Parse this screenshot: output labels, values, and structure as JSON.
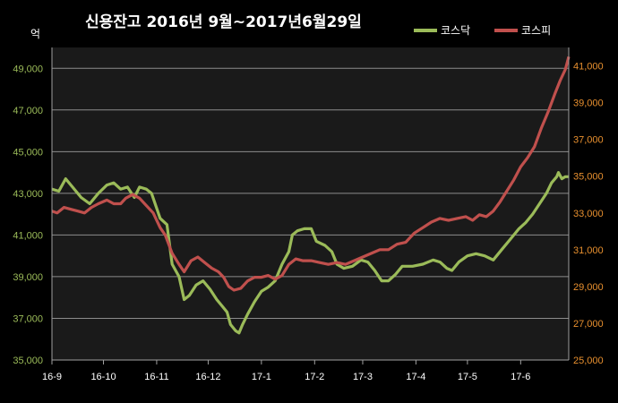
{
  "chart_data": {
    "type": "line",
    "title": "신용잔고  2016년 9월~2017년6월29일",
    "left_unit": "억",
    "x_tick_labels": [
      "16-9",
      "16-10",
      "16-11",
      "16-12",
      "17-1",
      "17-2",
      "17-3",
      "17-4",
      "17-5",
      "17-6"
    ],
    "x_range": [
      "2016-09-01",
      "2017-06-29"
    ],
    "left_axis": {
      "min": 35000,
      "max": 50000,
      "ticks": [
        "35,000",
        "37,000",
        "39,000",
        "41,000",
        "43,000",
        "45,000",
        "47,000",
        "49,000"
      ]
    },
    "right_axis": {
      "min": 25000,
      "max": 42000,
      "ticks": [
        "25,000",
        "27,000",
        "29,000",
        "31,000",
        "33,000",
        "35,000",
        "37,000",
        "39,000",
        "41,000"
      ]
    },
    "grid": true,
    "legend_position": "top-right",
    "series": [
      {
        "name": "코스닥",
        "axis": "left",
        "color": "#9bbb59",
        "points": [
          [
            "2016-09-01",
            43200
          ],
          [
            "2016-09-05",
            43100
          ],
          [
            "2016-09-09",
            43700
          ],
          [
            "2016-09-13",
            43300
          ],
          [
            "2016-09-18",
            42800
          ],
          [
            "2016-09-23",
            42500
          ],
          [
            "2016-09-28",
            43000
          ],
          [
            "2016-10-03",
            43400
          ],
          [
            "2016-10-07",
            43500
          ],
          [
            "2016-10-11",
            43200
          ],
          [
            "2016-10-15",
            43300
          ],
          [
            "2016-10-19",
            42800
          ],
          [
            "2016-10-22",
            43300
          ],
          [
            "2016-10-26",
            43200
          ],
          [
            "2016-10-29",
            43000
          ],
          [
            "2016-11-03",
            41800
          ],
          [
            "2016-11-07",
            41500
          ],
          [
            "2016-11-10",
            39600
          ],
          [
            "2016-11-14",
            39000
          ],
          [
            "2016-11-17",
            37900
          ],
          [
            "2016-11-20",
            38100
          ],
          [
            "2016-11-24",
            38600
          ],
          [
            "2016-11-28",
            38800
          ],
          [
            "2016-12-02",
            38400
          ],
          [
            "2016-12-06",
            37900
          ],
          [
            "2016-12-09",
            37600
          ],
          [
            "2016-12-12",
            37300
          ],
          [
            "2016-12-14",
            36700
          ],
          [
            "2016-12-17",
            36400
          ],
          [
            "2016-12-19",
            36300
          ],
          [
            "2016-12-21",
            36700
          ],
          [
            "2016-12-24",
            37200
          ],
          [
            "2016-12-28",
            37800
          ],
          [
            "2017-01-01",
            38300
          ],
          [
            "2017-01-05",
            38500
          ],
          [
            "2017-01-09",
            38800
          ],
          [
            "2017-01-13",
            39600
          ],
          [
            "2017-01-17",
            40200
          ],
          [
            "2017-01-19",
            41000
          ],
          [
            "2017-01-22",
            41200
          ],
          [
            "2017-01-26",
            41300
          ],
          [
            "2017-01-30",
            41300
          ],
          [
            "2017-02-02",
            40700
          ],
          [
            "2017-02-07",
            40500
          ],
          [
            "2017-02-11",
            40200
          ],
          [
            "2017-02-14",
            39600
          ],
          [
            "2017-02-18",
            39400
          ],
          [
            "2017-02-23",
            39500
          ],
          [
            "2017-02-28",
            39800
          ],
          [
            "2017-03-04",
            39700
          ],
          [
            "2017-03-08",
            39300
          ],
          [
            "2017-03-12",
            38800
          ],
          [
            "2017-03-16",
            38800
          ],
          [
            "2017-03-20",
            39100
          ],
          [
            "2017-03-24",
            39500
          ],
          [
            "2017-03-30",
            39500
          ],
          [
            "2017-04-05",
            39600
          ],
          [
            "2017-04-11",
            39800
          ],
          [
            "2017-04-15",
            39700
          ],
          [
            "2017-04-19",
            39400
          ],
          [
            "2017-04-22",
            39300
          ],
          [
            "2017-04-26",
            39700
          ],
          [
            "2017-05-01",
            40000
          ],
          [
            "2017-05-06",
            40100
          ],
          [
            "2017-05-11",
            40000
          ],
          [
            "2017-05-16",
            39800
          ],
          [
            "2017-05-21",
            40300
          ],
          [
            "2017-05-26",
            40800
          ],
          [
            "2017-05-31",
            41300
          ],
          [
            "2017-06-04",
            41600
          ],
          [
            "2017-06-08",
            42000
          ],
          [
            "2017-06-12",
            42500
          ],
          [
            "2017-06-16",
            43000
          ],
          [
            "2017-06-19",
            43500
          ],
          [
            "2017-06-22",
            43800
          ],
          [
            "2017-06-23",
            44000
          ],
          [
            "2017-06-25",
            43700
          ],
          [
            "2017-06-27",
            43800
          ],
          [
            "2017-06-29",
            43800
          ]
        ]
      },
      {
        "name": "코스피",
        "axis": "right",
        "color": "#c0504d",
        "points": [
          [
            "2016-09-01",
            33100
          ],
          [
            "2016-09-04",
            33000
          ],
          [
            "2016-09-08",
            33300
          ],
          [
            "2016-09-12",
            33200
          ],
          [
            "2016-09-16",
            33100
          ],
          [
            "2016-09-20",
            33000
          ],
          [
            "2016-09-24",
            33300
          ],
          [
            "2016-09-28",
            33500
          ],
          [
            "2016-10-03",
            33700
          ],
          [
            "2016-10-07",
            33500
          ],
          [
            "2016-10-11",
            33500
          ],
          [
            "2016-10-14",
            33800
          ],
          [
            "2016-10-18",
            34000
          ],
          [
            "2016-10-22",
            33800
          ],
          [
            "2016-10-26",
            33400
          ],
          [
            "2016-10-30",
            33000
          ],
          [
            "2016-11-03",
            32200
          ],
          [
            "2016-11-06",
            31800
          ],
          [
            "2016-11-10",
            30800
          ],
          [
            "2016-11-14",
            30200
          ],
          [
            "2016-11-17",
            29800
          ],
          [
            "2016-11-21",
            30400
          ],
          [
            "2016-11-25",
            30600
          ],
          [
            "2016-11-29",
            30300
          ],
          [
            "2016-12-03",
            30000
          ],
          [
            "2016-12-07",
            29800
          ],
          [
            "2016-12-10",
            29500
          ],
          [
            "2016-12-13",
            29000
          ],
          [
            "2016-12-16",
            28800
          ],
          [
            "2016-12-20",
            28900
          ],
          [
            "2016-12-24",
            29300
          ],
          [
            "2016-12-28",
            29500
          ],
          [
            "2017-01-01",
            29500
          ],
          [
            "2017-01-05",
            29600
          ],
          [
            "2017-01-09",
            29400
          ],
          [
            "2017-01-13",
            29600
          ],
          [
            "2017-01-17",
            30200
          ],
          [
            "2017-01-21",
            30500
          ],
          [
            "2017-01-25",
            30400
          ],
          [
            "2017-01-30",
            30400
          ],
          [
            "2017-02-04",
            30300
          ],
          [
            "2017-02-09",
            30200
          ],
          [
            "2017-02-14",
            30300
          ],
          [
            "2017-02-19",
            30200
          ],
          [
            "2017-02-24",
            30400
          ],
          [
            "2017-03-01",
            30600
          ],
          [
            "2017-03-06",
            30800
          ],
          [
            "2017-03-11",
            31000
          ],
          [
            "2017-03-16",
            31000
          ],
          [
            "2017-03-21",
            31300
          ],
          [
            "2017-03-26",
            31400
          ],
          [
            "2017-03-31",
            31900
          ],
          [
            "2017-04-05",
            32200
          ],
          [
            "2017-04-10",
            32500
          ],
          [
            "2017-04-15",
            32700
          ],
          [
            "2017-04-20",
            32600
          ],
          [
            "2017-04-25",
            32700
          ],
          [
            "2017-04-30",
            32800
          ],
          [
            "2017-05-04",
            32600
          ],
          [
            "2017-05-08",
            32900
          ],
          [
            "2017-05-12",
            32800
          ],
          [
            "2017-05-16",
            33100
          ],
          [
            "2017-05-20",
            33600
          ],
          [
            "2017-05-24",
            34200
          ],
          [
            "2017-05-28",
            34800
          ],
          [
            "2017-06-01",
            35500
          ],
          [
            "2017-06-05",
            36000
          ],
          [
            "2017-06-09",
            36600
          ],
          [
            "2017-06-13",
            37600
          ],
          [
            "2017-06-17",
            38500
          ],
          [
            "2017-06-21",
            39500
          ],
          [
            "2017-06-24",
            40200
          ],
          [
            "2017-06-27",
            40800
          ],
          [
            "2017-06-29",
            41500
          ]
        ]
      }
    ]
  }
}
